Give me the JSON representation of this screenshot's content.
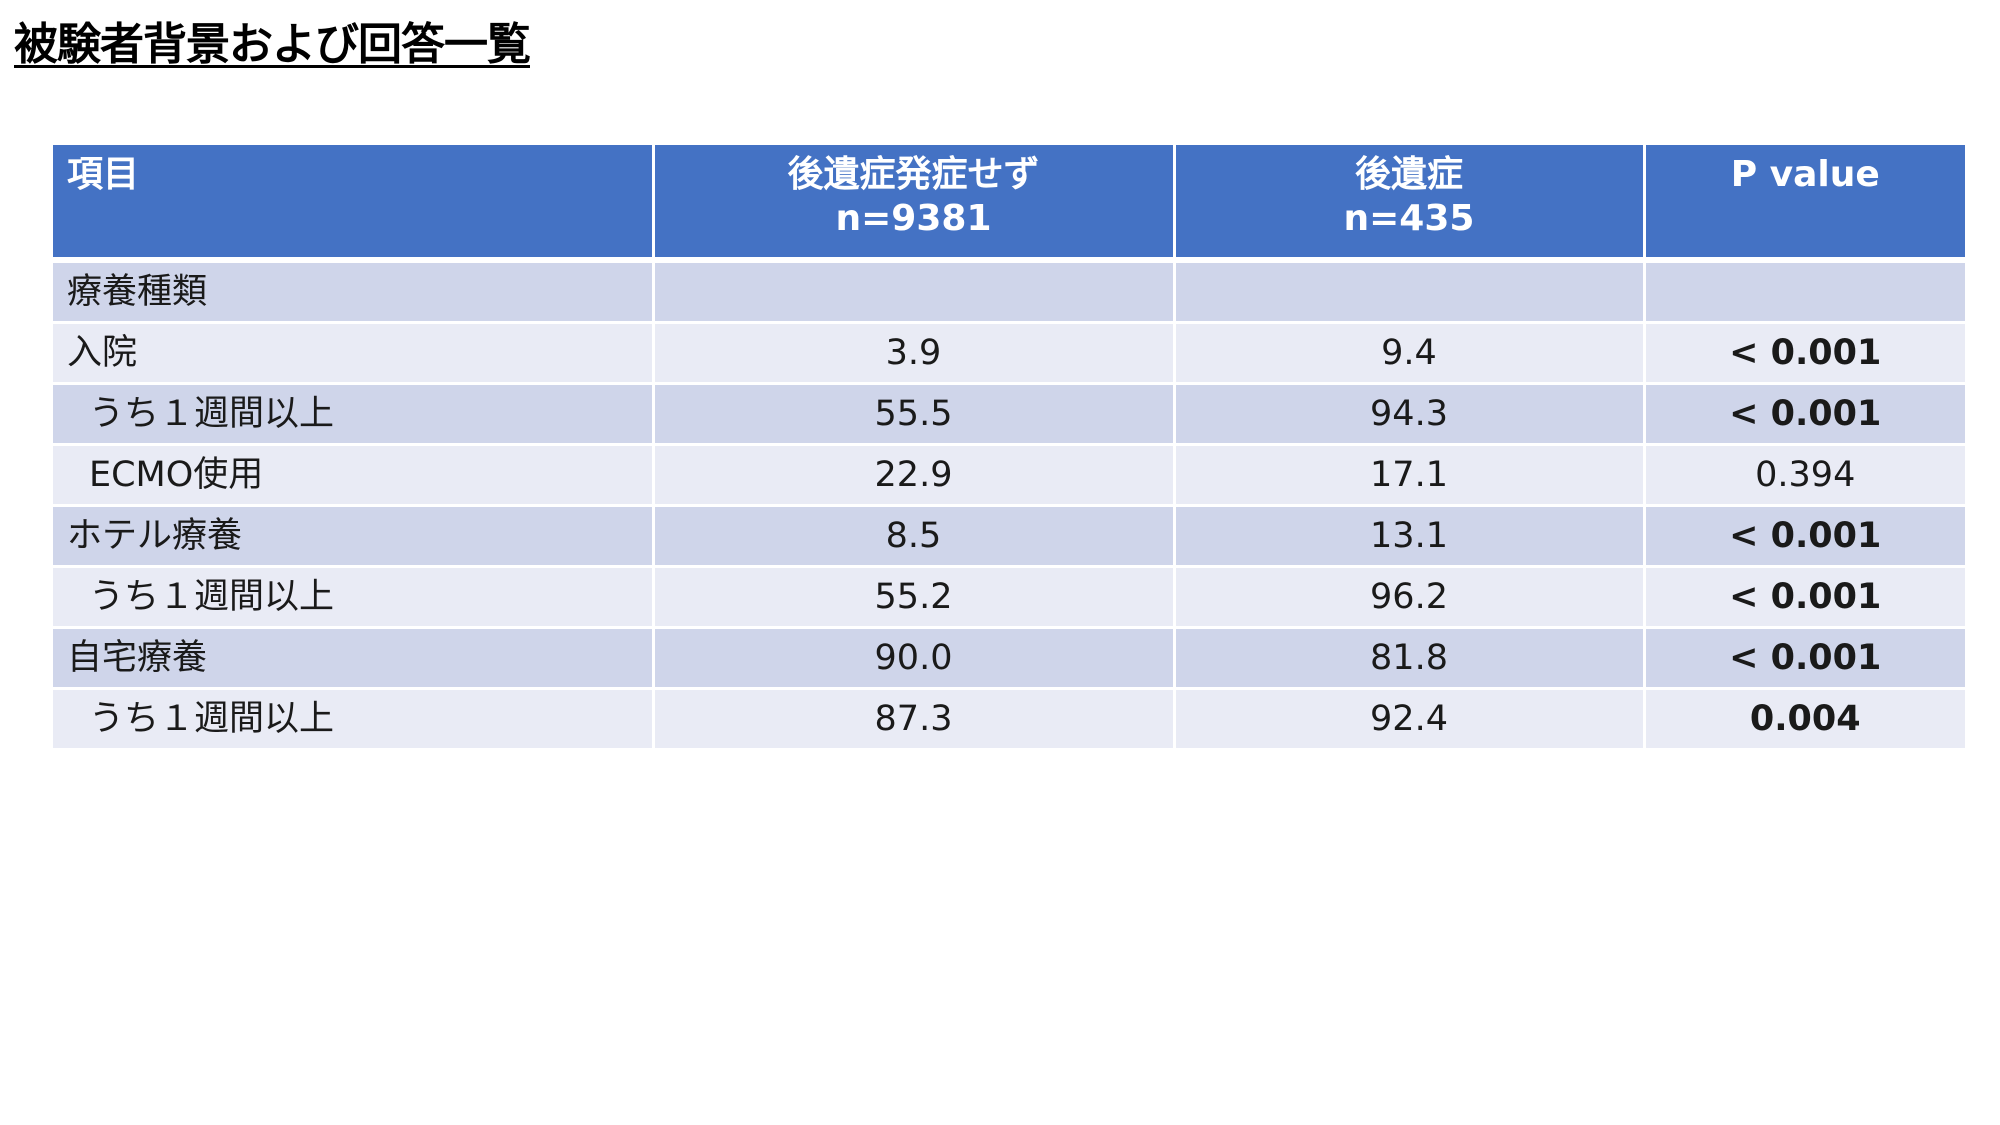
{
  "title": "被験者背景および回答一覧",
  "table": {
    "headers": [
      {
        "line1": "項目",
        "line2": ""
      },
      {
        "line1": "後遺症発症せず",
        "line2": "n=9381"
      },
      {
        "line1": "後遺症",
        "line2": "n=435"
      },
      {
        "line1": "P value",
        "line2": ""
      }
    ],
    "rows": [
      {
        "label": "療養種類",
        "no_sequelae": "",
        "sequelae": "",
        "p_value": ""
      },
      {
        "label": "入院",
        "no_sequelae": "3.9",
        "sequelae": "9.4",
        "p_value": "< 0.001"
      },
      {
        "label": "うち１週間以上",
        "no_sequelae": "55.5",
        "sequelae": "94.3",
        "p_value": "< 0.001"
      },
      {
        "label": "ECMO使用",
        "no_sequelae": "22.9",
        "sequelae": "17.1",
        "p_value": "0.394"
      },
      {
        "label": "ホテル療養",
        "no_sequelae": "8.5",
        "sequelae": "13.1",
        "p_value": "< 0.001"
      },
      {
        "label": "うち１週間以上",
        "no_sequelae": "55.2",
        "sequelae": "96.2",
        "p_value": "< 0.001"
      },
      {
        "label": "自宅療養",
        "no_sequelae": "90.0",
        "sequelae": "81.8",
        "p_value": "< 0.001"
      },
      {
        "label": "うち１週間以上",
        "no_sequelae": "87.3",
        "sequelae": "92.4",
        "p_value": "0.004"
      }
    ]
  },
  "colors": {
    "header_bg": "#4472c4",
    "band_dark": "#cfd5ea",
    "band_light": "#e9ebf5"
  }
}
